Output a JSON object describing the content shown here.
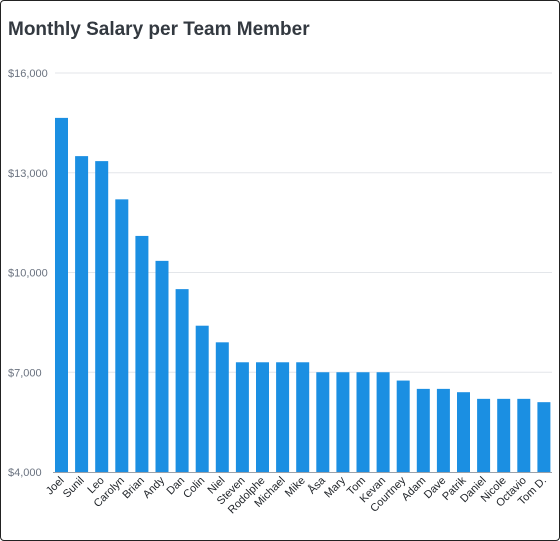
{
  "chart_data": {
    "type": "bar",
    "title": "Monthly Salary per Team Member",
    "xlabel": "",
    "ylabel": "",
    "ylim": [
      4000,
      16000
    ],
    "yticks": [
      4000,
      7000,
      10000,
      13000,
      16000
    ],
    "ytick_labels": [
      "$4,000",
      "$7,000",
      "$10,000",
      "$13,000",
      "$16,000"
    ],
    "grid": "horizontal",
    "bar_color": "#1b8fe2",
    "categories": [
      "Joel",
      "Sunil",
      "Leo",
      "Carolyn",
      "Brian",
      "Andy",
      "Dan",
      "Colin",
      "Niel",
      "Steven",
      "Rodolphe",
      "Michael",
      "Mike",
      "Åsa",
      "Mary",
      "Tom",
      "Kevan",
      "Courtney",
      "Adam",
      "Dave",
      "Patrik",
      "Daniel",
      "Nicole",
      "Octavio",
      "Tom D."
    ],
    "values": [
      14650,
      13500,
      13350,
      12200,
      11100,
      10350,
      9500,
      8400,
      7900,
      7300,
      7300,
      7300,
      7300,
      7000,
      7000,
      7000,
      7000,
      6750,
      6500,
      6500,
      6400,
      6200,
      6200,
      6200,
      6100
    ]
  }
}
